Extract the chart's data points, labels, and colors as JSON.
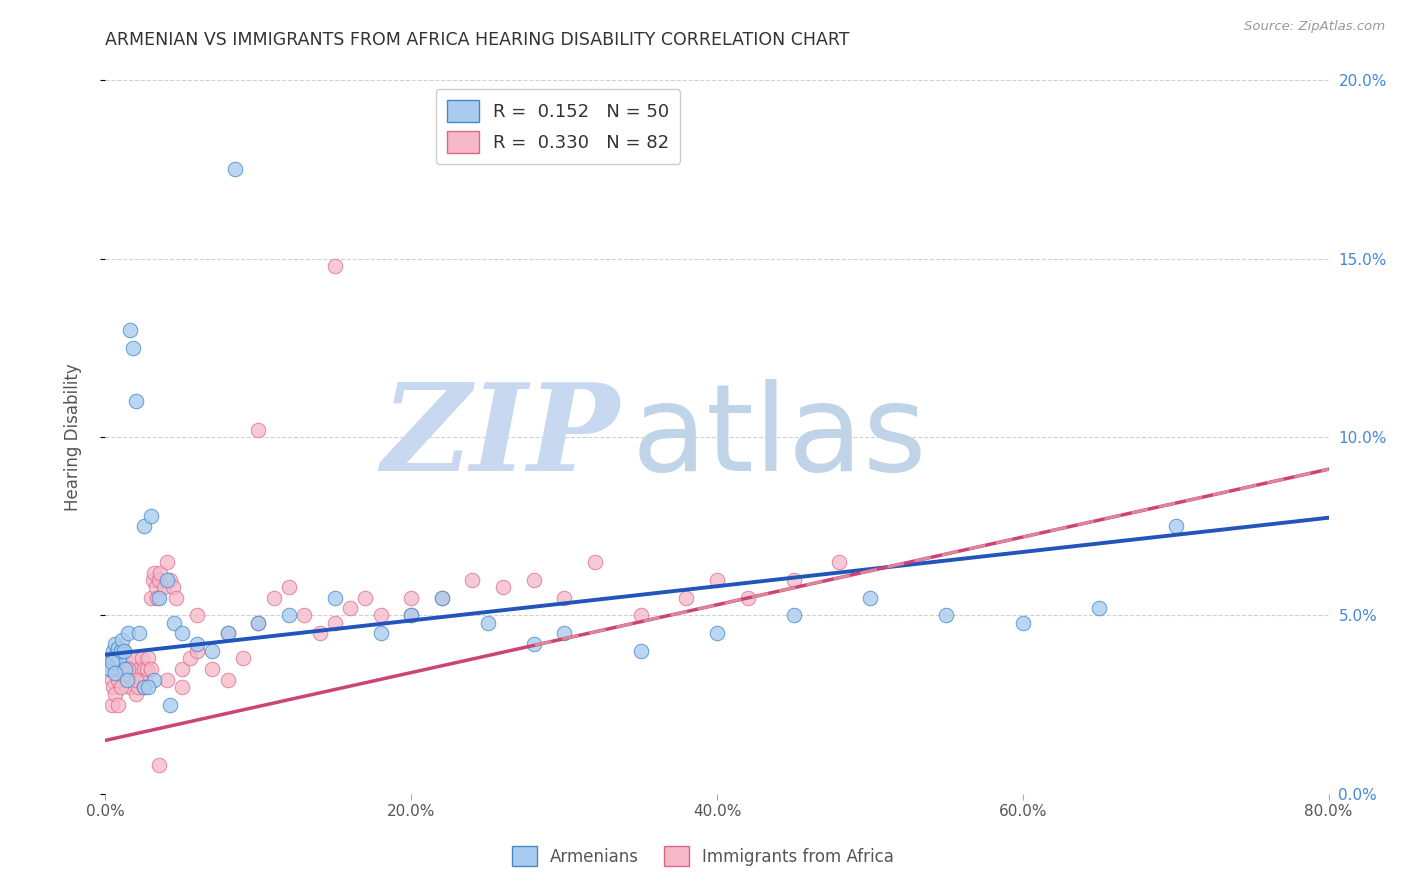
{
  "title": "ARMENIAN VS IMMIGRANTS FROM AFRICA HEARING DISABILITY CORRELATION CHART",
  "source": "Source: ZipAtlas.com",
  "xlim": [
    0,
    80
  ],
  "ylim": [
    0,
    20
  ],
  "watermark_zip": "ZIP",
  "watermark_atlas": "atlas",
  "armenian_x": [
    0.3,
    0.5,
    0.5,
    0.6,
    0.7,
    0.8,
    0.9,
    1.0,
    1.1,
    1.2,
    1.3,
    1.5,
    1.6,
    1.8,
    2.0,
    2.2,
    2.5,
    3.0,
    3.5,
    4.0,
    4.5,
    5.0,
    6.0,
    7.0,
    8.0,
    10.0,
    12.0,
    15.0,
    18.0,
    20.0,
    22.0,
    25.0,
    28.0,
    30.0,
    35.0,
    40.0,
    45.0,
    50.0,
    55.0,
    60.0,
    65.0,
    70.0,
    2.5,
    3.2,
    0.4,
    0.6,
    1.4,
    2.8,
    4.2,
    8.5
  ],
  "armenian_y": [
    3.5,
    3.8,
    4.0,
    4.2,
    3.9,
    4.1,
    3.8,
    4.0,
    4.3,
    4.0,
    3.5,
    4.5,
    13.0,
    12.5,
    11.0,
    4.5,
    7.5,
    7.8,
    5.5,
    6.0,
    4.8,
    4.5,
    4.2,
    4.0,
    4.5,
    4.8,
    5.0,
    5.5,
    4.5,
    5.0,
    5.5,
    4.8,
    4.2,
    4.5,
    4.0,
    4.5,
    5.0,
    5.5,
    5.0,
    4.8,
    5.2,
    7.5,
    3.0,
    3.2,
    3.7,
    3.4,
    3.2,
    3.0,
    2.5,
    17.5
  ],
  "africa_x": [
    0.2,
    0.3,
    0.4,
    0.5,
    0.6,
    0.7,
    0.8,
    0.9,
    1.0,
    1.1,
    1.2,
    1.3,
    1.4,
    1.5,
    1.6,
    1.7,
    1.8,
    2.0,
    2.1,
    2.2,
    2.3,
    2.4,
    2.5,
    2.6,
    2.7,
    2.8,
    3.0,
    3.1,
    3.2,
    3.3,
    3.4,
    3.5,
    3.6,
    3.8,
    4.0,
    4.2,
    4.4,
    4.6,
    5.0,
    5.5,
    6.0,
    7.0,
    8.0,
    9.0,
    10.0,
    11.0,
    12.0,
    13.0,
    14.0,
    15.0,
    16.0,
    17.0,
    18.0,
    20.0,
    22.0,
    24.0,
    26.0,
    28.0,
    30.0,
    32.0,
    35.0,
    38.0,
    40.0,
    42.0,
    45.0,
    48.0,
    0.4,
    0.6,
    0.8,
    1.0,
    1.5,
    2.0,
    2.5,
    3.0,
    3.5,
    4.0,
    5.0,
    6.0,
    8.0,
    10.0,
    15.0,
    20.0
  ],
  "africa_y": [
    3.5,
    3.8,
    3.2,
    3.0,
    3.5,
    3.8,
    3.2,
    3.5,
    3.8,
    3.5,
    4.0,
    3.8,
    3.5,
    3.2,
    3.0,
    3.5,
    3.8,
    2.8,
    3.0,
    3.5,
    3.2,
    3.8,
    3.5,
    3.2,
    3.5,
    3.8,
    5.5,
    6.0,
    6.2,
    5.8,
    5.5,
    6.0,
    6.2,
    5.8,
    6.5,
    6.0,
    5.8,
    5.5,
    3.5,
    3.8,
    4.0,
    3.5,
    3.2,
    3.8,
    10.2,
    5.5,
    5.8,
    5.0,
    4.5,
    4.8,
    5.2,
    5.5,
    5.0,
    5.5,
    5.5,
    6.0,
    5.8,
    6.0,
    5.5,
    6.5,
    5.0,
    5.5,
    6.0,
    5.5,
    6.0,
    6.5,
    2.5,
    2.8,
    2.5,
    3.0,
    3.5,
    3.2,
    3.0,
    3.5,
    0.8,
    3.2,
    3.0,
    5.0,
    4.5,
    4.8,
    14.8,
    5.0
  ],
  "blue_scatter_color": "#aaccee",
  "blue_scatter_edge": "#4488cc",
  "pink_scatter_color": "#f5b8c8",
  "pink_scatter_edge": "#dd6688",
  "blue_line_color": "#2255bb",
  "pink_line_color": "#cc4477",
  "pink_dash_color": "#dd8899",
  "background_color": "#ffffff",
  "grid_color": "#cccccc",
  "title_color": "#333333",
  "axis_label_color": "#555555",
  "right_axis_color": "#4488dd",
  "watermark_zip_color": "#c8d8f0",
  "watermark_atlas_color": "#c0d4e8",
  "blue_line_intercept": 3.9,
  "blue_line_slope": 0.048,
  "pink_line_intercept": 1.5,
  "pink_line_slope": 0.095,
  "pink_dash_intercept": 1.5,
  "pink_dash_slope": 0.095
}
